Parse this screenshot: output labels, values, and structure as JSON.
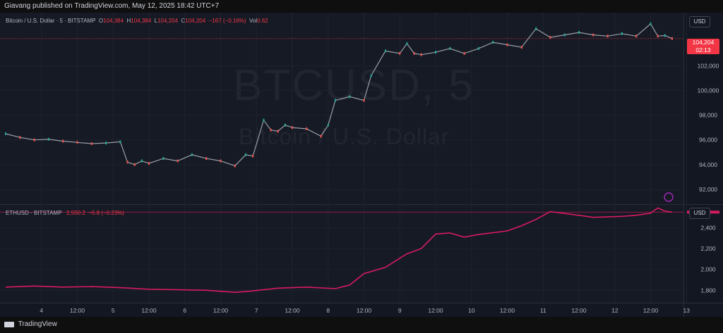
{
  "header": {
    "published": "Giavang published on TradingView.com, May 12, 2025 18:42 UTC+7"
  },
  "footer": {
    "brand": "TradingView"
  },
  "watermark": {
    "symbol": "BTCUSD, 5",
    "name": "Bitcoin / U.S. Dollar"
  },
  "btc_legend": {
    "title": "Bitcoin / U.S. Dollar · 5 · BITSTAMP",
    "o_label": "O",
    "o": "104,384",
    "h_label": "H",
    "h": "104,384",
    "l_label": "L",
    "l": "104,204",
    "c_label": "C",
    "c": "104,204",
    "chg": "−167 (−0.16%)",
    "vol_label": "Vol",
    "vol": "0.62"
  },
  "eth_legend": {
    "title": "ETHUSD · BITSTAMP",
    "value": "2,550.2",
    "chg": "−5.8 (−0.23%)"
  },
  "currency": "USD",
  "price_tag": {
    "price": "104,204",
    "countdown": "02:13"
  },
  "chart_data": [
    {
      "type": "line",
      "series_label": "Bitcoin / U.S. Dollar · 5 · BITSTAMP",
      "ylim": [
        90800,
        106300
      ],
      "ytick_labels": [
        "102,000",
        "100,000",
        "98,000",
        "96,000",
        "94,000",
        "92,000"
      ],
      "yticks": [
        102000,
        100000,
        98000,
        96000,
        94000,
        92000
      ],
      "xtick_labels": [
        "4",
        "12:00",
        "5",
        "12:00",
        "6",
        "12:00",
        "7",
        "12:00",
        "8",
        "12:00",
        "9",
        "12:00",
        "10",
        "12:00",
        "11",
        "12:00",
        "12",
        "12:00",
        "13"
      ],
      "x_days": [
        0.5,
        1.0,
        1.5,
        2.0,
        2.5,
        3.0,
        3.5,
        4.0,
        4.5,
        5.0,
        5.5,
        6.0,
        6.5,
        7.0,
        7.5,
        8.0,
        8.5,
        9.0,
        9.5
      ],
      "x": [
        0.0,
        0.2,
        0.4,
        0.6,
        0.8,
        1.0,
        1.2,
        1.4,
        1.6,
        1.7,
        1.8,
        1.9,
        2.0,
        2.2,
        2.4,
        2.6,
        2.8,
        3.0,
        3.2,
        3.35,
        3.45,
        3.6,
        3.7,
        3.8,
        3.9,
        4.0,
        4.2,
        4.4,
        4.5,
        4.6,
        4.8,
        5.0,
        5.1,
        5.3,
        5.5,
        5.6,
        5.7,
        5.8,
        6.0,
        6.2,
        6.4,
        6.6,
        6.8,
        7.0,
        7.2,
        7.4,
        7.6,
        7.8,
        8.0,
        8.2,
        8.4,
        8.6,
        8.8,
        9.0,
        9.1,
        9.2,
        9.3
      ],
      "y": [
        96500,
        96200,
        96000,
        96050,
        95900,
        95800,
        95700,
        95750,
        95850,
        94200,
        94000,
        94300,
        94100,
        94500,
        94300,
        94800,
        94500,
        94300,
        93900,
        94800,
        94700,
        97600,
        96800,
        96700,
        97200,
        97000,
        96900,
        96300,
        97200,
        99200,
        99500,
        99200,
        101200,
        103200,
        103000,
        103800,
        103000,
        102900,
        103100,
        103400,
        103000,
        103400,
        103900,
        103700,
        103500,
        105000,
        104300,
        104500,
        104700,
        104500,
        104400,
        104600,
        104400,
        105400,
        104400,
        104450,
        104204
      ],
      "last": 104204
    },
    {
      "type": "line",
      "series_label": "ETHUSD · BITSTAMP",
      "ylim": [
        1680,
        2620
      ],
      "ytick_labels": [
        "2,400",
        "2,200",
        "2,000",
        "1,800"
      ],
      "yticks": [
        2400,
        2200,
        2000,
        1800
      ],
      "x": [
        0.0,
        0.4,
        0.8,
        1.2,
        1.6,
        2.0,
        2.4,
        2.8,
        3.2,
        3.4,
        3.8,
        4.2,
        4.6,
        4.8,
        5.0,
        5.3,
        5.6,
        5.8,
        6.0,
        6.2,
        6.4,
        6.6,
        7.0,
        7.2,
        7.4,
        7.6,
        8.0,
        8.2,
        8.6,
        8.8,
        9.0,
        9.1,
        9.2,
        9.3
      ],
      "y": [
        1830,
        1840,
        1830,
        1835,
        1825,
        1810,
        1805,
        1800,
        1780,
        1790,
        1820,
        1830,
        1815,
        1850,
        1960,
        2020,
        2150,
        2200,
        2340,
        2350,
        2310,
        2335,
        2370,
        2420,
        2480,
        2555,
        2520,
        2500,
        2510,
        2520,
        2540,
        2590,
        2560,
        2550
      ],
      "last": 2550.2
    }
  ]
}
